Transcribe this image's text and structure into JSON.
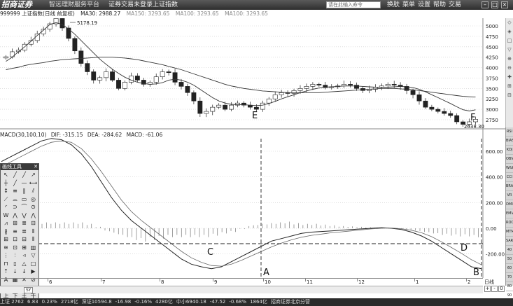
{
  "titlebar": {
    "logo": "招商证券",
    "subtitle": "智远理财服务平台",
    "menus": [
      "证券交易未登录",
      "上证指数"
    ],
    "search_placeholder": "请在此输入命令",
    "right_menus": [
      "换肤",
      "菜单",
      "设置",
      "帮助",
      "交易"
    ]
  },
  "infobar": {
    "symbol": "999999 上证指数(日线 前复权)",
    "ma30": "MA30: 2988.27",
    "ma150": "MA150: 3293.65",
    "ma100a": "MA100: 3293.65",
    "ma100b": "MA100: 3293.65"
  },
  "price_axis_labels": [
    "5000",
    "4750",
    "4500",
    "4250",
    "4000",
    "3750",
    "3500",
    "3250",
    "3000",
    "2750"
  ],
  "annotations": {
    "high": "5178.19",
    "low": "2638.30",
    "E": "E",
    "F": "F",
    "A": "A",
    "B": "B",
    "C": "C",
    "D": "D"
  },
  "macd": {
    "label": "MACD(30,100,10)",
    "dif": "DIF: -315.15",
    "dea": "DEA: -284.62",
    "macd": "MACD: -61.06",
    "axis_labels": [
      "600.00",
      "400.00",
      "200.00",
      "0.00",
      "-200.00"
    ]
  },
  "x_axis_labels": [
    "6",
    "7",
    "8",
    "9",
    "10",
    "11",
    "12",
    "1",
    "2"
  ],
  "toolbox": {
    "title": "画线工具",
    "tools": [
      "↖",
      "╱",
      "╱",
      "↗",
      "┼",
      "╱",
      "—",
      "⟷",
      "↕",
      "≡",
      "∥",
      "⫽",
      "⟋",
      "⌓",
      "▭",
      "◎",
      "◜",
      "⊃",
      "⌒",
      "⊙",
      "W",
      "⋀",
      "⋁",
      "⋀",
      "⩘",
      "⊞",
      "≣",
      "⊟",
      "∦",
      "≡",
      "≣",
      "⫴",
      "⊞",
      "⊡",
      "⊟",
      "⫴",
      "≋",
      "⊡",
      "⊞",
      "▥",
      "⋮",
      "⫶",
      "◃",
      "▽",
      "⊓",
      "▯",
      "△",
      "□",
      "⇡",
      "⇣",
      "↓",
      "▶",
      "A",
      "▦",
      "✕",
      "⊘",
      "▣",
      "▭",
      "▢",
      "⊓",
      "上",
      "下",
      "王",
      "干"
    ]
  },
  "right_tools": [
    "RSI",
    "BIAS",
    "KDJ",
    "OBV",
    "W&R",
    "CCI",
    "BRAR",
    "VR",
    "DMI",
    "EMV",
    "ROC",
    "MTM",
    "SAR",
    "40",
    "50",
    "60",
    "70",
    "80",
    "90"
  ],
  "right_tools_top": [
    "◇",
    "◈",
    "□",
    "▽",
    "⊕",
    "⊖",
    "✚",
    "⊞",
    "⊟"
  ],
  "period": {
    "label": "日线",
    "plus": "+",
    "minus": "-",
    "zero": "0"
  },
  "tab": "SY",
  "statusbar": [
    "上证 2762",
    "6.83",
    "0.23%",
    "2718亿",
    "深证10594.8",
    "-16.98",
    "-0.16%",
    "4280亿",
    "中小6940.18",
    "-47.52",
    "-0.68%",
    "1864亿",
    "招商证券北京分营"
  ],
  "colors": {
    "candle": "#222222",
    "ma_line": "#333333",
    "macd_dif": "#222222",
    "macd_dea": "#666666",
    "hist": "#777777"
  },
  "chart_data": [
    {
      "type": "candlestick",
      "title": "999999 上证指数(日线 前复权)",
      "x_tick_labels": [
        "6",
        "7",
        "8",
        "9",
        "10",
        "11",
        "12",
        "1",
        "2"
      ],
      "ylim": [
        2600,
        5300
      ],
      "y_ticks": [
        2750,
        3000,
        3250,
        3500,
        3750,
        4000,
        4250,
        4500,
        4750,
        5000
      ],
      "close": [
        4260,
        4380,
        4420,
        4560,
        4650,
        4810,
        4920,
        5050,
        5178,
        4950,
        4700,
        4400,
        4100,
        3900,
        3700,
        3760,
        3900,
        3700,
        3500,
        3650,
        3800,
        3700,
        3600,
        3650,
        3780,
        3900,
        3880,
        3650,
        3550,
        3400,
        3200,
        2900,
        2950,
        3050,
        3100,
        3000,
        3100,
        3150,
        3100,
        3050,
        3000,
        3150,
        3250,
        3350,
        3400,
        3380,
        3450,
        3500,
        3550,
        3600,
        3580,
        3520,
        3540,
        3560,
        3600,
        3580,
        3500,
        3450,
        3480,
        3530,
        3560,
        3600,
        3580,
        3550,
        3450,
        3350,
        3200,
        3050,
        3000,
        2950,
        2900,
        2850,
        2700,
        2640,
        2700,
        2760
      ],
      "ma30": [
        4150,
        4250,
        4380,
        4500,
        4630,
        4770,
        4900,
        5030,
        5080,
        5030,
        4930,
        4800,
        4650,
        4500,
        4350,
        4200,
        4080,
        3960,
        3860,
        3770,
        3700,
        3650,
        3620,
        3600,
        3610,
        3640,
        3700,
        3720,
        3700,
        3650,
        3580,
        3480,
        3380,
        3280,
        3200,
        3150,
        3120,
        3110,
        3110,
        3100,
        3090,
        3100,
        3140,
        3190,
        3250,
        3300,
        3350,
        3400,
        3440,
        3480,
        3510,
        3530,
        3540,
        3550,
        3560,
        3560,
        3560,
        3550,
        3540,
        3530,
        3530,
        3530,
        3540,
        3550,
        3540,
        3520,
        3480,
        3420,
        3350,
        3280,
        3210,
        3140,
        3060,
        2990,
        2960,
        2988
      ],
      "ma150": [
        3950,
        3980,
        4010,
        4050,
        4080,
        4100,
        4120,
        4150,
        4170,
        4190,
        4200,
        4210,
        4220,
        4230,
        4240,
        4250,
        4250,
        4250,
        4240,
        4230,
        4210,
        4190,
        4160,
        4130,
        4100,
        4070,
        4030,
        3990,
        3950,
        3900,
        3850,
        3800,
        3750,
        3700,
        3650,
        3600,
        3560,
        3530,
        3500,
        3480,
        3460,
        3440,
        3430,
        3420,
        3410,
        3400,
        3400,
        3400,
        3400,
        3400,
        3400,
        3410,
        3420,
        3430,
        3440,
        3450,
        3460,
        3470,
        3480,
        3490,
        3500,
        3500,
        3500,
        3490,
        3480,
        3470,
        3450,
        3430,
        3410,
        3390,
        3370,
        3350,
        3330,
        3310,
        3300,
        3293.65
      ]
    },
    {
      "type": "line",
      "title": "MACD(30,100,10)",
      "ylim": [
        -350,
        700
      ],
      "y_ticks": [
        600,
        400,
        200,
        0,
        -200
      ],
      "series": [
        {
          "name": "DIF",
          "values": [
            520,
            560,
            600,
            640,
            680,
            700,
            690,
            650,
            580,
            480,
            360,
            240,
            140,
            60,
            0,
            -60,
            -120,
            -180,
            -240,
            -280,
            -300,
            -315,
            -300,
            -260,
            -220,
            -180,
            -140,
            -100,
            -80,
            -60,
            -40,
            -30,
            -25,
            -20,
            -15,
            -10,
            -5,
            0,
            5,
            0,
            -10,
            -30,
            -60,
            -100,
            -150,
            -200,
            -250,
            -300,
            -315.15
          ]
        },
        {
          "name": "DEA",
          "values": [
            480,
            520,
            560,
            600,
            640,
            670,
            680,
            670,
            620,
            540,
            440,
            330,
            220,
            130,
            60,
            0,
            -60,
            -120,
            -180,
            -230,
            -265,
            -290,
            -295,
            -280,
            -250,
            -215,
            -180,
            -145,
            -115,
            -90,
            -70,
            -55,
            -45,
            -35,
            -28,
            -20,
            -12,
            -5,
            0,
            2,
            -3,
            -15,
            -35,
            -65,
            -105,
            -150,
            -195,
            -245,
            -284.62
          ]
        }
      ],
      "histogram": [
        40,
        40,
        40,
        40,
        40,
        30,
        10,
        -20,
        -40,
        -60,
        -80,
        -90,
        -80,
        -70,
        -60,
        -60,
        -60,
        -60,
        -60,
        -50,
        -35,
        -25,
        -5,
        20,
        30,
        35,
        40,
        45,
        35,
        30,
        30,
        25,
        20,
        15,
        13,
        10,
        7,
        5,
        5,
        -2,
        -7,
        -15,
        -25,
        -35,
        -45,
        -50,
        -55,
        -55,
        -61.06
      ]
    }
  ]
}
